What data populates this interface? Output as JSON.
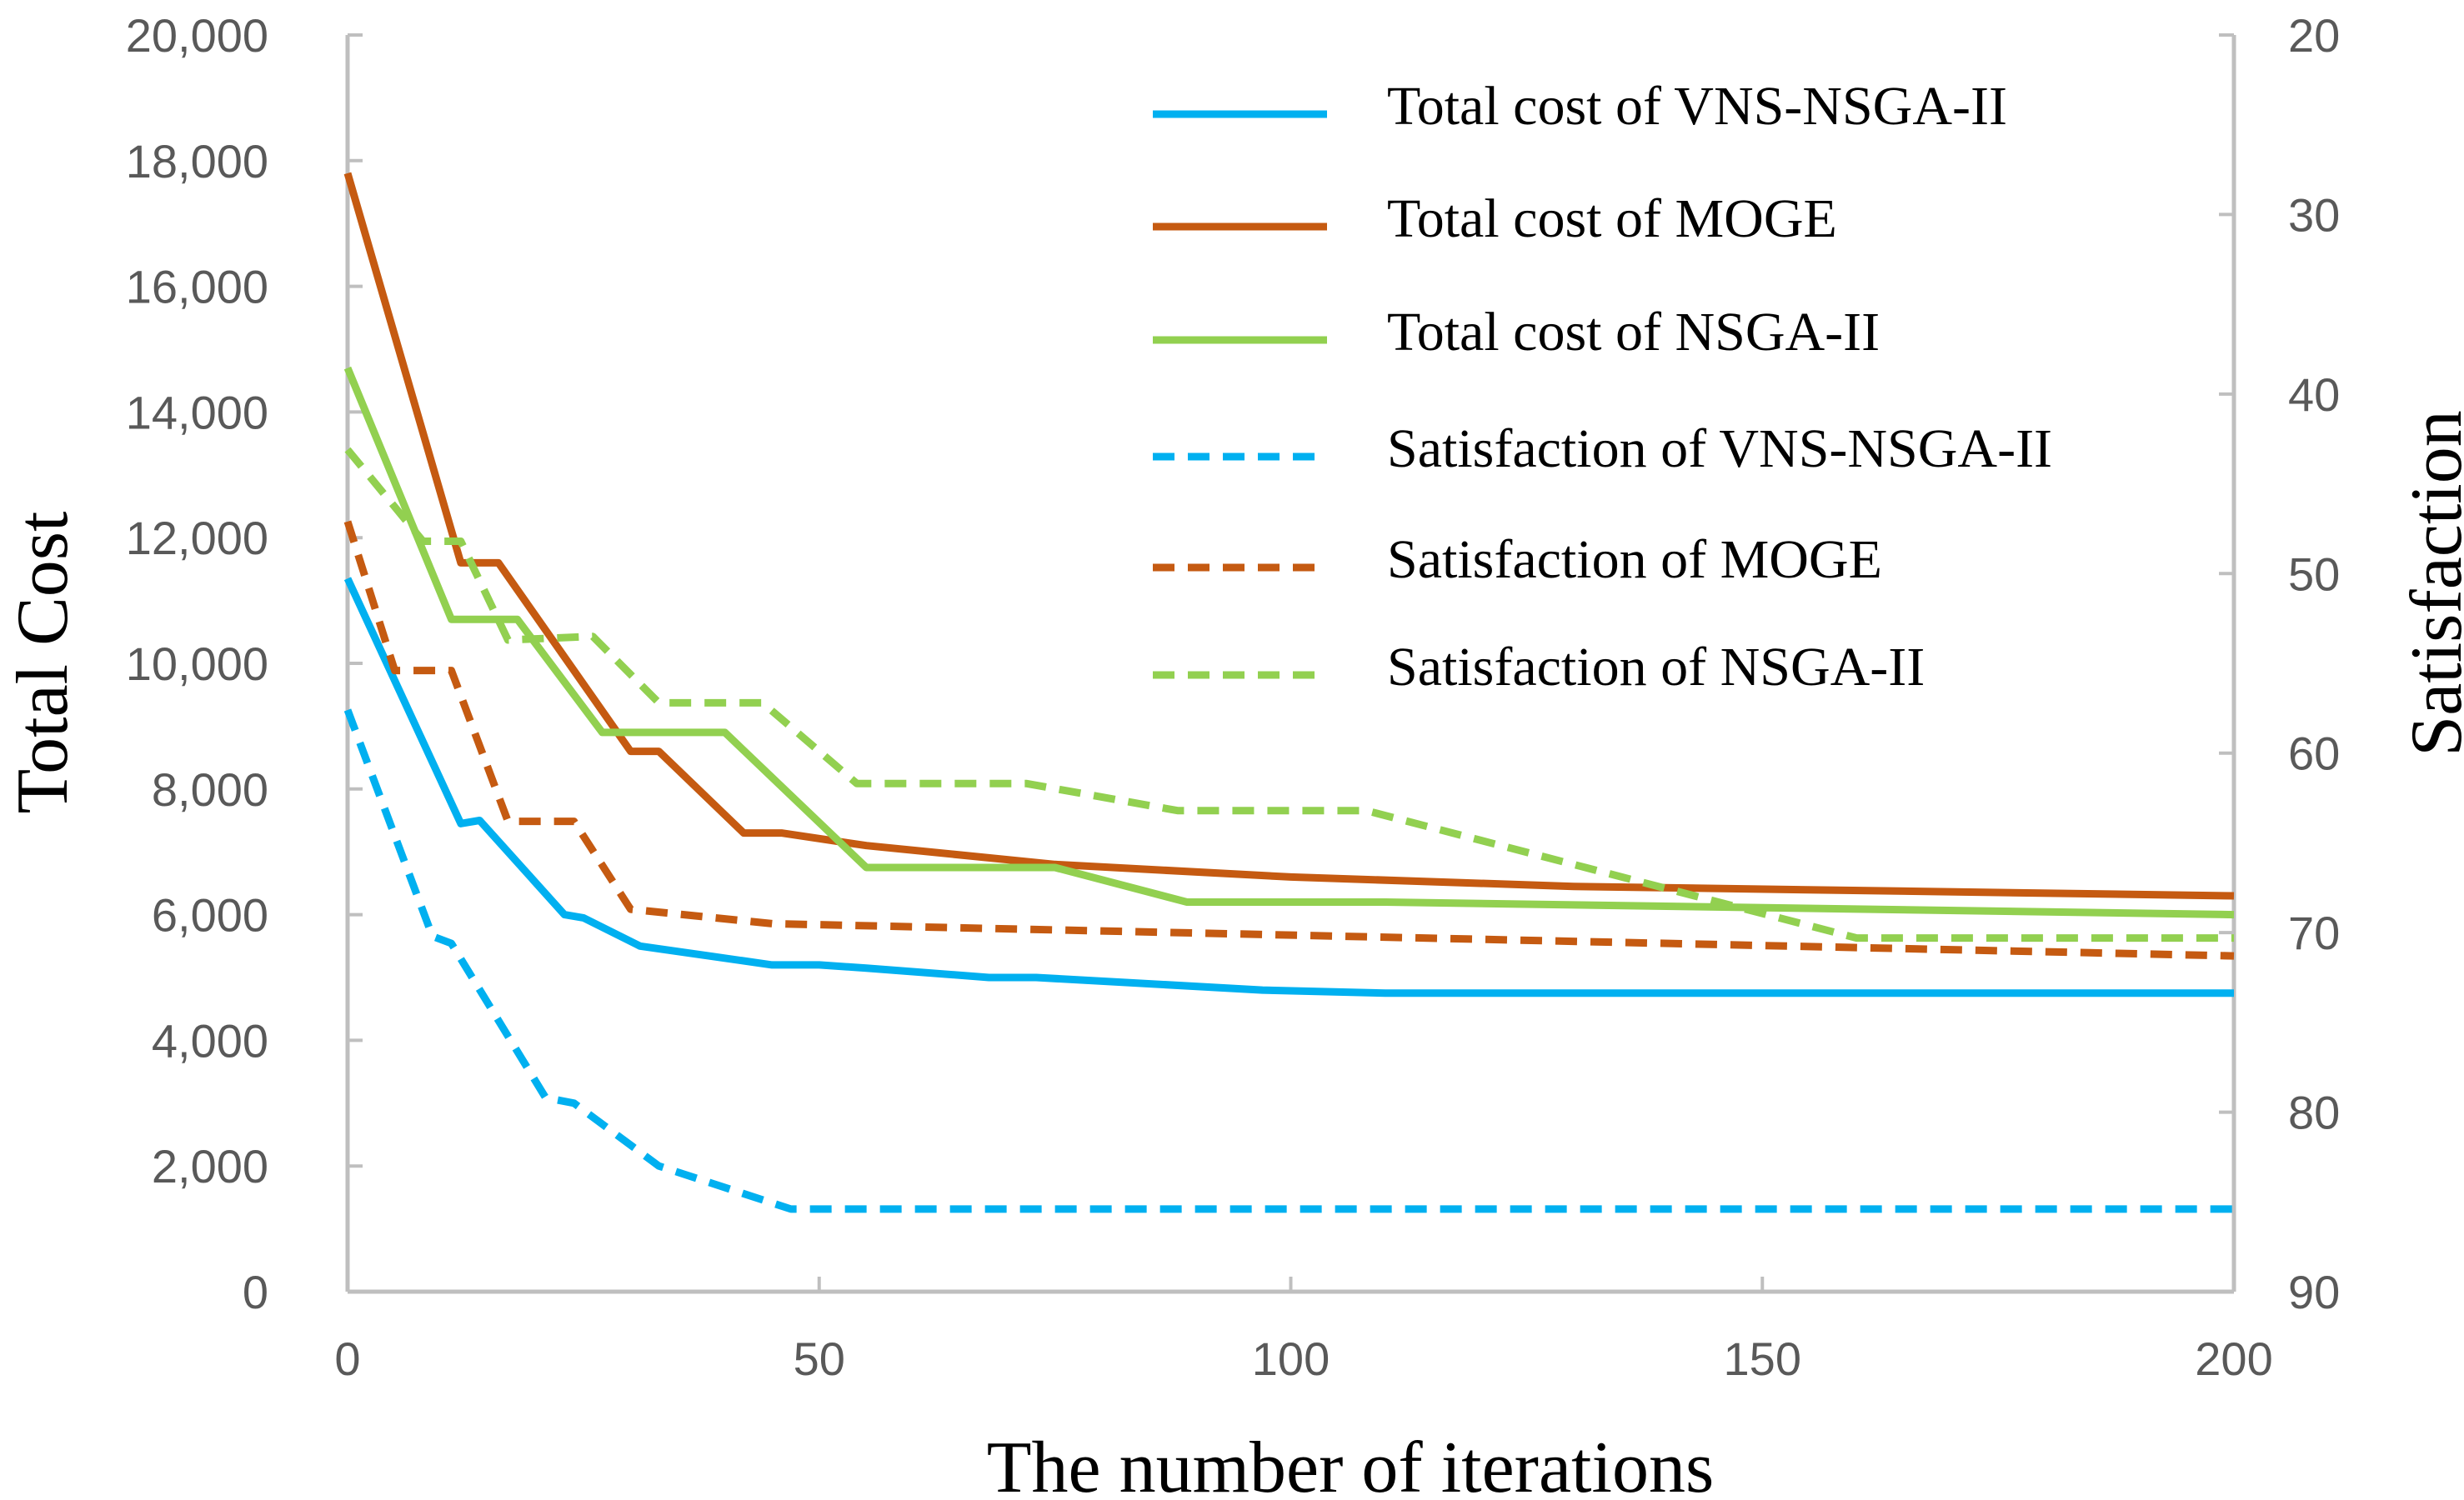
{
  "chart_data": {
    "type": "line",
    "title": "",
    "xlabel": "The number of iterations",
    "ylabel": "Total Cost",
    "y2label": "Satisfaction",
    "xlim": [
      0,
      200
    ],
    "ylim": [
      0,
      20000
    ],
    "y2lim": [
      20,
      90
    ],
    "y2_inverted": true,
    "grid": false,
    "legend_position": "top-right",
    "x_ticks": [
      "0",
      "50",
      "100",
      "150",
      "200"
    ],
    "y_ticks": [
      "0",
      "2,000",
      "4,000",
      "6,000",
      "8,000",
      "10,000",
      "12,000",
      "14,000",
      "16,000",
      "18,000",
      "20,000"
    ],
    "y2_ticks": [
      "20",
      "30",
      "40",
      "50",
      "60",
      "70",
      "80",
      "90"
    ],
    "series": [
      {
        "name": "Total cost of VNS-NSGA-II",
        "axis": "left",
        "dashed": false,
        "color": "#00b0f0",
        "x": [
          0,
          12,
          14,
          23,
          25,
          31,
          45,
          50,
          55,
          68,
          73,
          97,
          110,
          200
        ],
        "y": [
          11350,
          7450,
          7500,
          6000,
          5950,
          5500,
          5200,
          5200,
          5150,
          5000,
          5000,
          4800,
          4750,
          4750
        ]
      },
      {
        "name": "Total cost of MOGE",
        "axis": "left",
        "dashed": false,
        "color": "#c55a11",
        "x": [
          0,
          12,
          16,
          30,
          33,
          42,
          46,
          55,
          75,
          100,
          130,
          200
        ],
        "y": [
          17800,
          11600,
          11600,
          8600,
          8600,
          7300,
          7300,
          7100,
          6800,
          6600,
          6450,
          6300
        ]
      },
      {
        "name": "Total cost of NSGA-II",
        "axis": "left",
        "dashed": false,
        "color": "#92d050",
        "x": [
          0,
          11,
          18,
          27,
          40,
          55,
          75,
          89,
          110,
          200
        ],
        "y": [
          14700,
          10700,
          10700,
          8900,
          8900,
          6750,
          6750,
          6200,
          6200,
          6000
        ]
      },
      {
        "name": "Satisfaction of VNS-NSGA-II",
        "axis": "right",
        "dashed": true,
        "color": "#00b0f0",
        "x": [
          0,
          9,
          11,
          21,
          24,
          33,
          47,
          200
        ],
        "y": [
          57.6,
          70.2,
          70.6,
          79.2,
          79.5,
          83,
          85.4,
          85.4
        ]
      },
      {
        "name": "Satisfaction of MOGE",
        "axis": "right",
        "dashed": true,
        "color": "#c55a11",
        "x": [
          0,
          5,
          11,
          17,
          24,
          30,
          45,
          200
        ],
        "y": [
          47.1,
          55.4,
          55.4,
          63.8,
          63.8,
          68.7,
          69.5,
          71.3
        ]
      },
      {
        "name": "Satisfaction of NSGA-II",
        "axis": "right",
        "dashed": true,
        "color": "#92d050",
        "x": [
          0,
          8,
          12,
          17,
          26,
          33,
          44,
          54,
          72,
          88,
          108,
          160,
          200
        ],
        "y": [
          43.1,
          48.2,
          48.2,
          53.7,
          53.5,
          57.2,
          57.2,
          61.7,
          61.7,
          63.2,
          63.2,
          70.3,
          70.3
        ]
      }
    ]
  }
}
